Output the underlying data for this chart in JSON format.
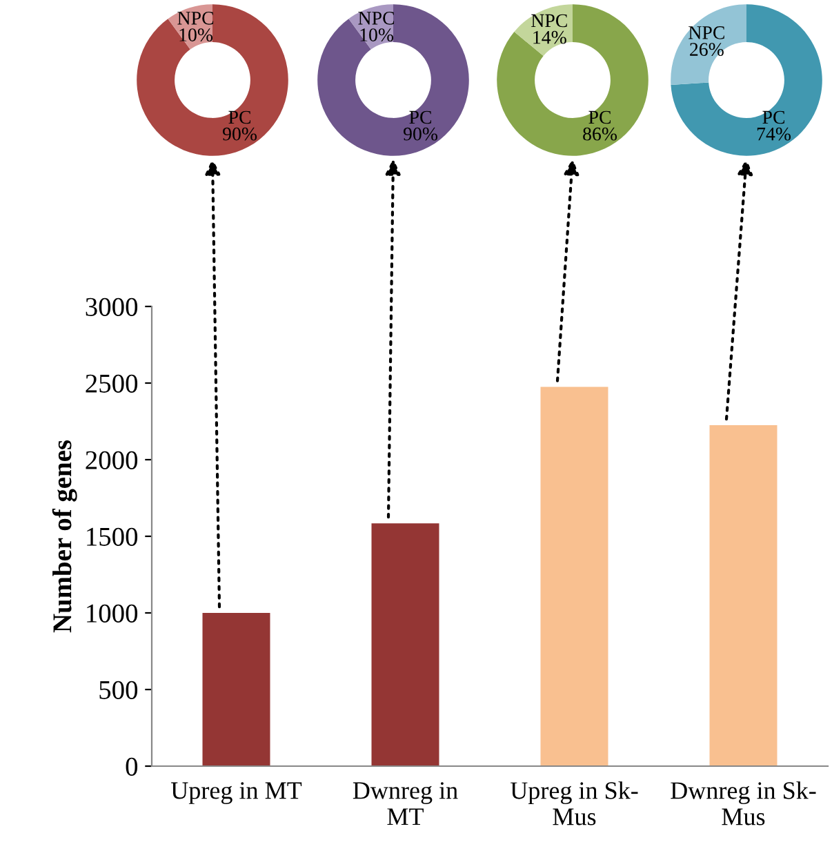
{
  "chart_data": [
    {
      "type": "donut",
      "categories": [
        "PC",
        "NPC"
      ],
      "values": [
        90,
        10
      ],
      "value_labels": [
        "90%",
        "10%"
      ],
      "colors": [
        "#aa4642",
        "#d99694"
      ]
    },
    {
      "type": "donut",
      "categories": [
        "PC",
        "NPC"
      ],
      "values": [
        90,
        10
      ],
      "value_labels": [
        "90%",
        "10%"
      ],
      "colors": [
        "#6e568c",
        "#a998c2"
      ]
    },
    {
      "type": "donut",
      "categories": [
        "PC",
        "NPC"
      ],
      "values": [
        86,
        14
      ],
      "value_labels": [
        "86%",
        "14%"
      ],
      "colors": [
        "#88a64b",
        "#c3d69b"
      ]
    },
    {
      "type": "donut",
      "categories": [
        "PC",
        "NPC"
      ],
      "values": [
        74,
        26
      ],
      "value_labels": [
        "74%",
        "26%"
      ],
      "colors": [
        "#4198b0",
        "#93c4d6"
      ]
    },
    {
      "type": "bar",
      "categories": [
        "Upreg in MT",
        "Dwnreg in\nMT",
        "Upreg in Sk-\nMus",
        "Dwnreg in Sk-\nMus"
      ],
      "values": [
        1000,
        1585,
        2475,
        2225
      ],
      "colors": [
        "#943634",
        "#943634",
        "#f9c090",
        "#f9c090"
      ],
      "ylabel": "Number of genes",
      "ylim": [
        0,
        3000
      ],
      "yticks": [
        0,
        500,
        1000,
        1500,
        2000,
        2500,
        3000
      ]
    }
  ]
}
